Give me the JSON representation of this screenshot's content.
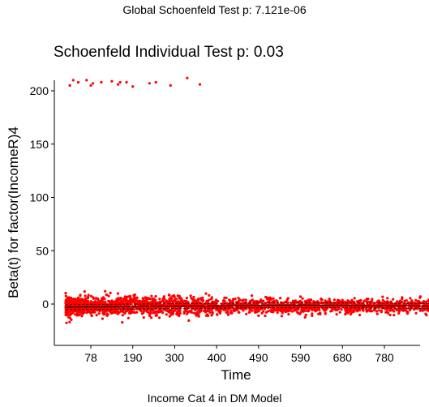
{
  "supertitle": "Global Schoenfeld Test p: 7.121e-06",
  "caption": "Income Cat 4 in DM Model",
  "chart_data": {
    "type": "scatter",
    "title": "Schoenfeld Individual Test p: 0.03",
    "xlabel": "Time",
    "ylabel": "Beta(t) for factor(IncomeR)4",
    "x_ticks": [
      78,
      190,
      300,
      400,
      490,
      590,
      680,
      780
    ],
    "y_ticks": [
      0,
      50,
      100,
      150,
      200
    ],
    "xlim": [
      0,
      1000
    ],
    "ylim": [
      -30,
      225
    ],
    "x_tick_positions": [
      110,
      210,
      310,
      410,
      510,
      610,
      710,
      810
    ],
    "grid": false,
    "point_color": "#ff0000",
    "fit_line_color": "#000000",
    "series": [
      {
        "values_upper_cluster": [
          [
            60,
            205
          ],
          [
            68,
            210
          ],
          [
            80,
            208
          ],
          [
            100,
            210
          ],
          [
            110,
            205
          ],
          [
            135,
            208
          ],
          [
            160,
            209
          ],
          [
            175,
            206
          ],
          [
            195,
            208
          ],
          [
            210,
            204
          ],
          [
            250,
            207
          ],
          [
            265,
            208
          ],
          [
            300,
            205
          ],
          [
            340,
            212
          ],
          [
            370,
            206
          ],
          [
            115,
            207
          ],
          [
            180,
            208
          ]
        ],
        "lower_band": {
          "x_range": [
            50,
            990
          ],
          "y_center": -2,
          "y_spread": 10
        }
      }
    ],
    "fit_line": [
      [
        50,
        -3
      ],
      [
        300,
        -2
      ],
      [
        600,
        -1
      ],
      [
        990,
        -2
      ]
    ]
  }
}
